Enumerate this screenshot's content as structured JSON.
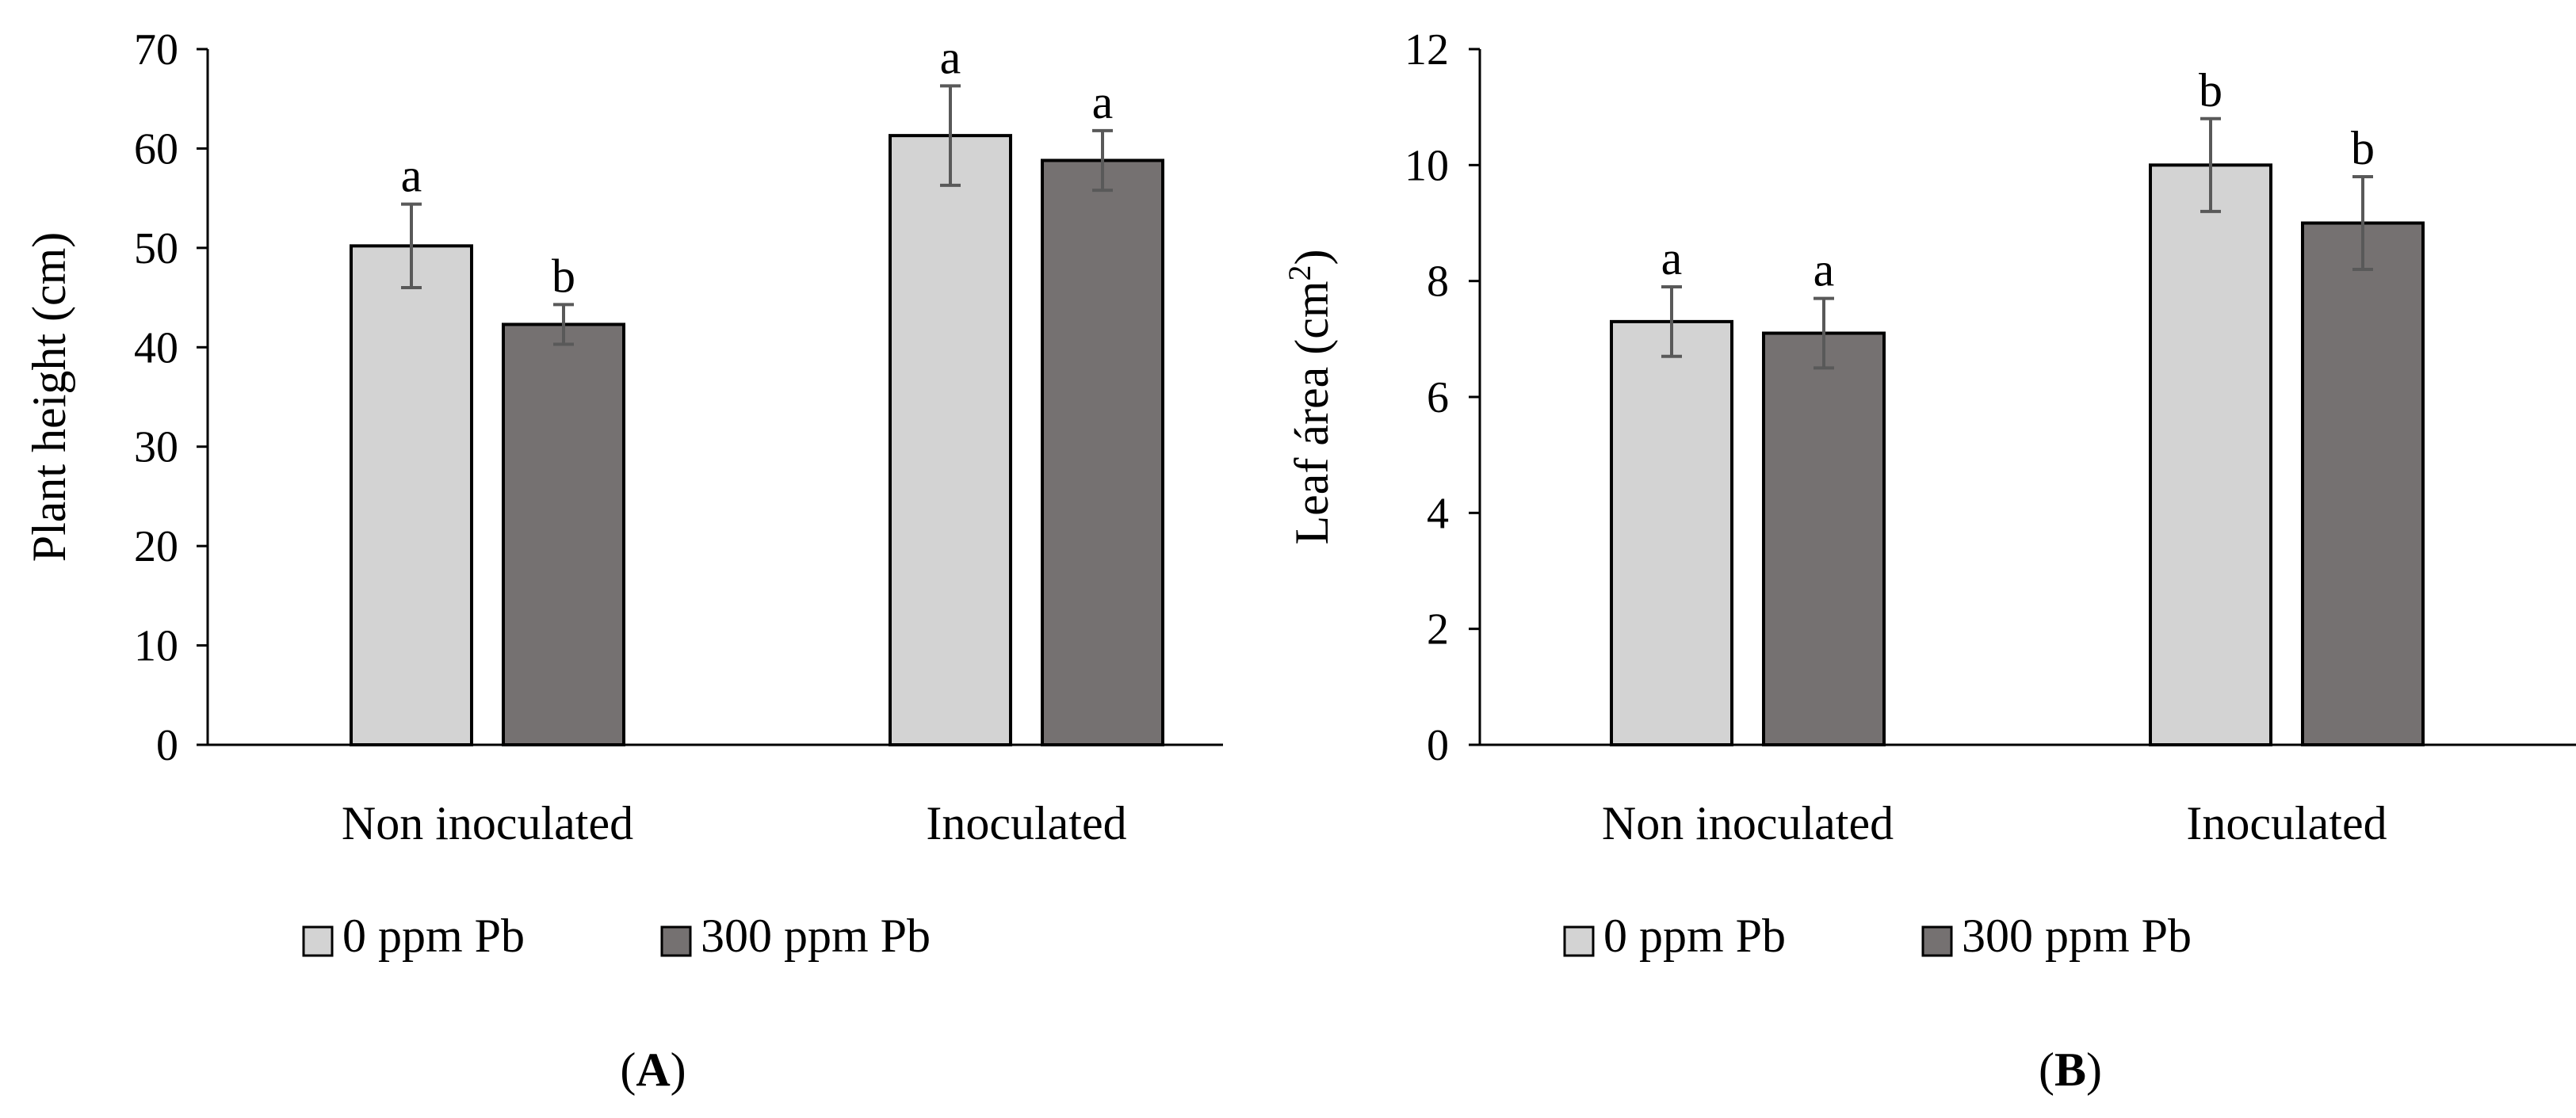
{
  "legend": {
    "series_0": "0 ppm Pb",
    "series_1": "300 ppm Pb"
  },
  "panels": {
    "a": {
      "label_open": "(",
      "label_letter": "A",
      "label_close": ")"
    },
    "b": {
      "label_open": "(",
      "label_letter": "B",
      "label_close": ")"
    }
  },
  "chart_data": [
    {
      "type": "bar",
      "panel": "A",
      "categories": [
        "Non inoculated",
        "Inoculated"
      ],
      "ylabel": "Plant  height (cm)",
      "ylim": [
        0,
        70
      ],
      "yticks": [
        0,
        10,
        20,
        30,
        40,
        50,
        60,
        70
      ],
      "grid": false,
      "legend_position": "bottom",
      "series": [
        {
          "name": "0 ppm Pb",
          "color": "#d3d3d3",
          "values": [
            50.2,
            61.3
          ],
          "errors": [
            4.2,
            5.0
          ],
          "letters": [
            "a",
            "a"
          ]
        },
        {
          "name": "300 ppm Pb",
          "color": "#757171",
          "values": [
            42.3,
            58.8
          ],
          "errors": [
            2.0,
            3.0
          ],
          "letters": [
            "b",
            "a"
          ]
        }
      ]
    },
    {
      "type": "bar",
      "panel": "B",
      "categories": [
        "Non inoculated",
        "Inoculated"
      ],
      "ylabel": "Leaf área (cm",
      "ylabel_superscript": "2",
      "ylabel_suffix": ")",
      "ylim": [
        0,
        12
      ],
      "yticks": [
        0,
        2,
        4,
        6,
        8,
        10,
        12
      ],
      "grid": false,
      "legend_position": "bottom",
      "series": [
        {
          "name": "0 ppm Pb",
          "color": "#d3d3d3",
          "values": [
            7.3,
            10.0
          ],
          "errors": [
            0.6,
            0.8
          ],
          "letters": [
            "a",
            "b"
          ]
        },
        {
          "name": "300 ppm Pb",
          "color": "#757171",
          "values": [
            7.1,
            9.0
          ],
          "errors": [
            0.6,
            0.8
          ],
          "letters": [
            "a",
            "b"
          ]
        }
      ]
    }
  ]
}
